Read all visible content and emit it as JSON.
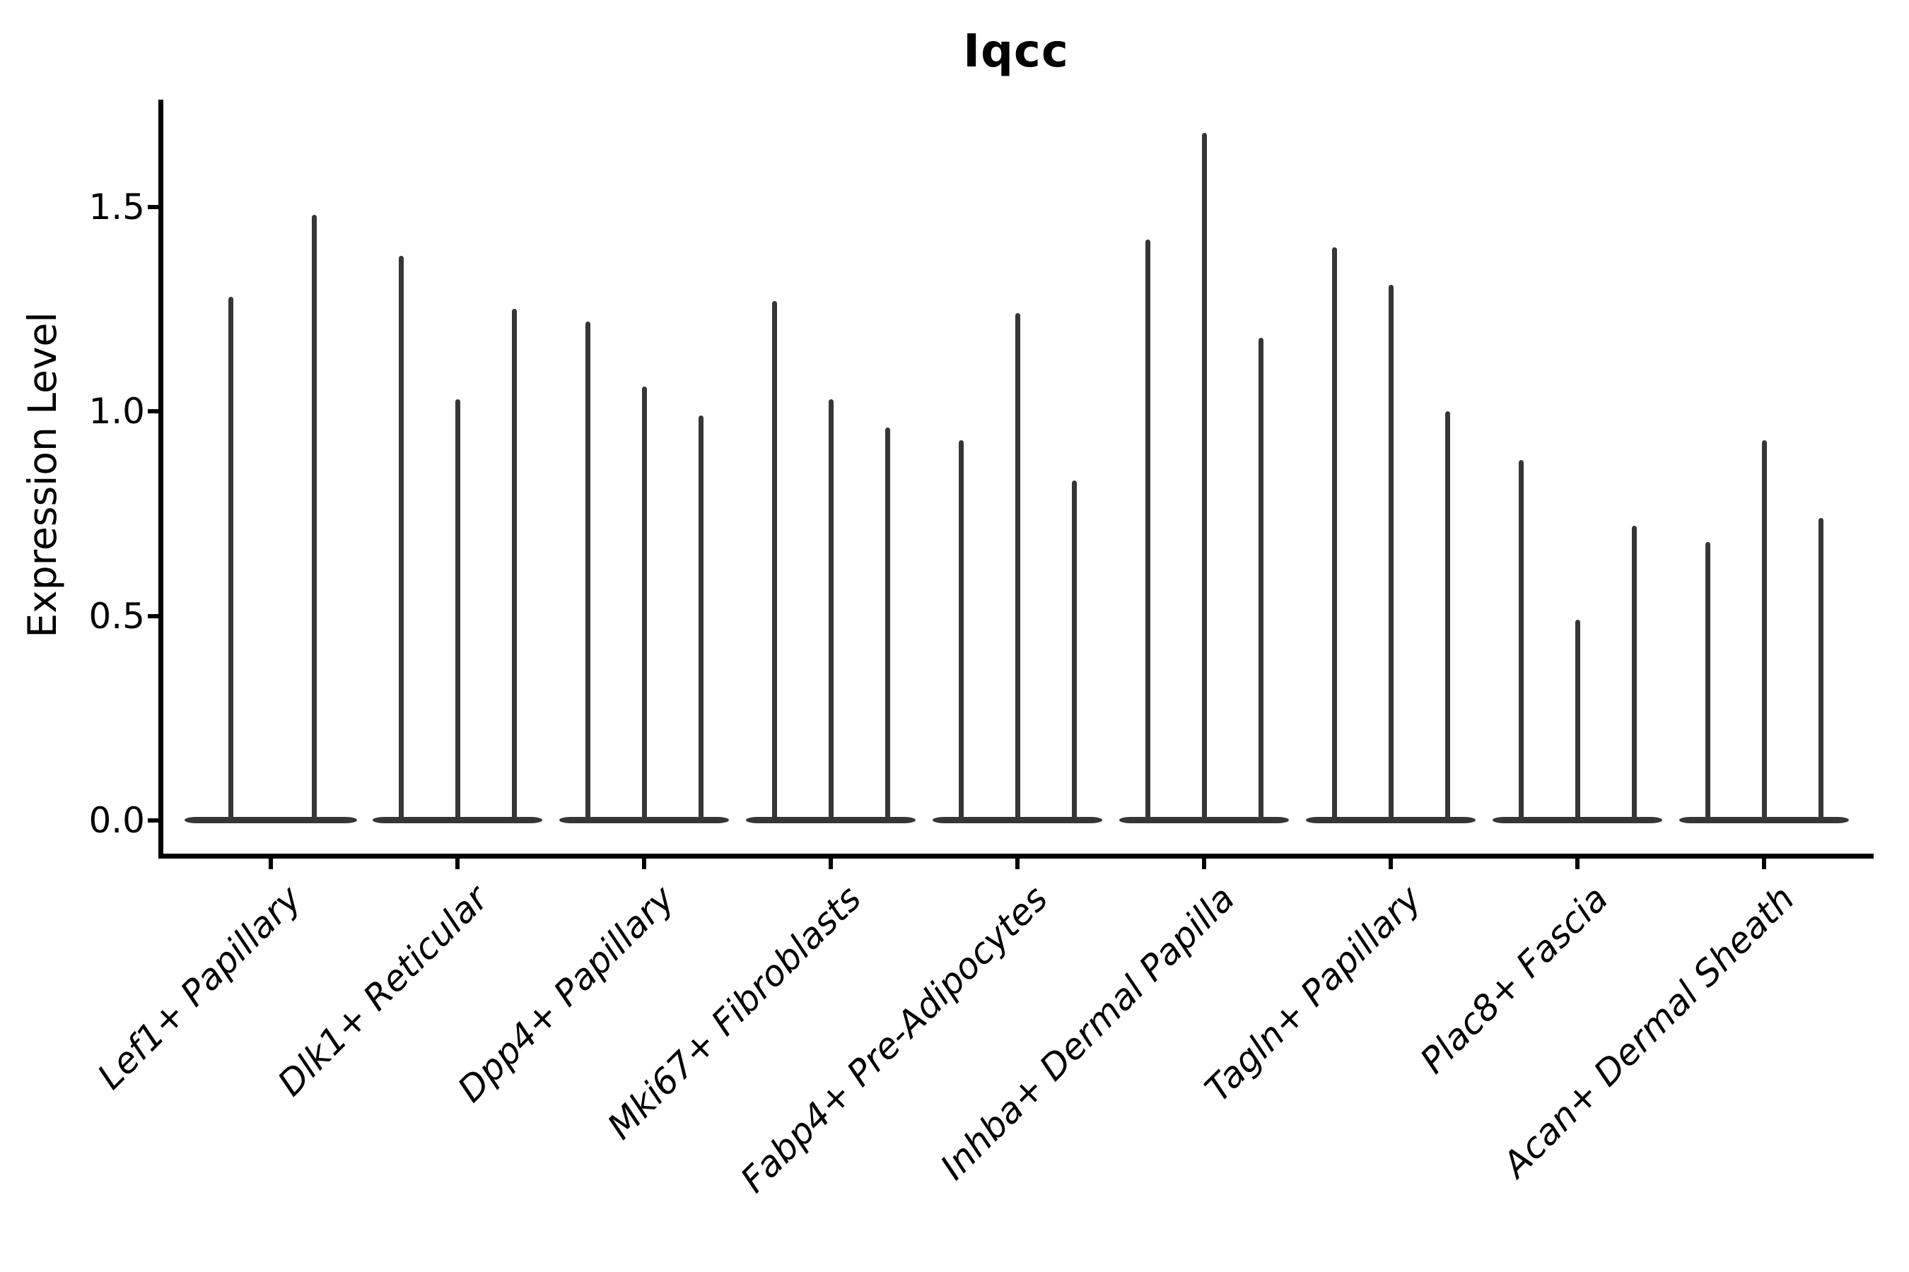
{
  "chart_data": {
    "type": "violin",
    "title": "Iqcc",
    "xlabel": "",
    "ylabel": "Expression Level",
    "ylim": [
      0,
      1.76
    ],
    "yticks": [
      0.0,
      0.5,
      1.0,
      1.5
    ],
    "ytick_labels": [
      "0.0",
      "0.5",
      "1.0",
      "1.5"
    ],
    "grid": false,
    "legend": "none",
    "categories": [
      "Lef1+ Papillary",
      "Dlk1+ Reticular",
      "Dpp4+ Papillary",
      "Mki67+ Fibroblasts",
      "Fabp4+ Pre-Adipocytes",
      "Inhba+ Dermal Papilla",
      "Tagln+ Papillary",
      "Plac8+ Fascia",
      "Acan+ Dermal Sheath"
    ],
    "violins": [
      {
        "category": "Lef1+ Papillary",
        "max_values": [
          1.28,
          1.48
        ]
      },
      {
        "category": "Dlk1+ Reticular",
        "max_values": [
          1.38,
          1.03,
          1.25
        ]
      },
      {
        "category": "Dpp4+ Papillary",
        "max_values": [
          1.22,
          1.06,
          0.99
        ]
      },
      {
        "category": "Mki67+ Fibroblasts",
        "max_values": [
          1.27,
          1.03,
          0.96
        ]
      },
      {
        "category": "Fabp4+ Pre-Adipocytes",
        "max_values": [
          0.93,
          1.24,
          0.83
        ]
      },
      {
        "category": "Inhba+ Dermal Papilla",
        "max_values": [
          1.42,
          1.68,
          1.18
        ]
      },
      {
        "category": "Tagln+ Papillary",
        "max_values": [
          1.4,
          1.31,
          1.0
        ]
      },
      {
        "category": "Plac8+ Fascia",
        "max_values": [
          0.88,
          0.49,
          0.72
        ]
      },
      {
        "category": "Acan+ Dermal Sheath",
        "max_values": [
          0.68,
          0.93,
          0.74
        ]
      }
    ],
    "colors": {
      "violin": "#363636",
      "axis": "#000000",
      "text": "#000000",
      "background": "#ffffff"
    }
  }
}
